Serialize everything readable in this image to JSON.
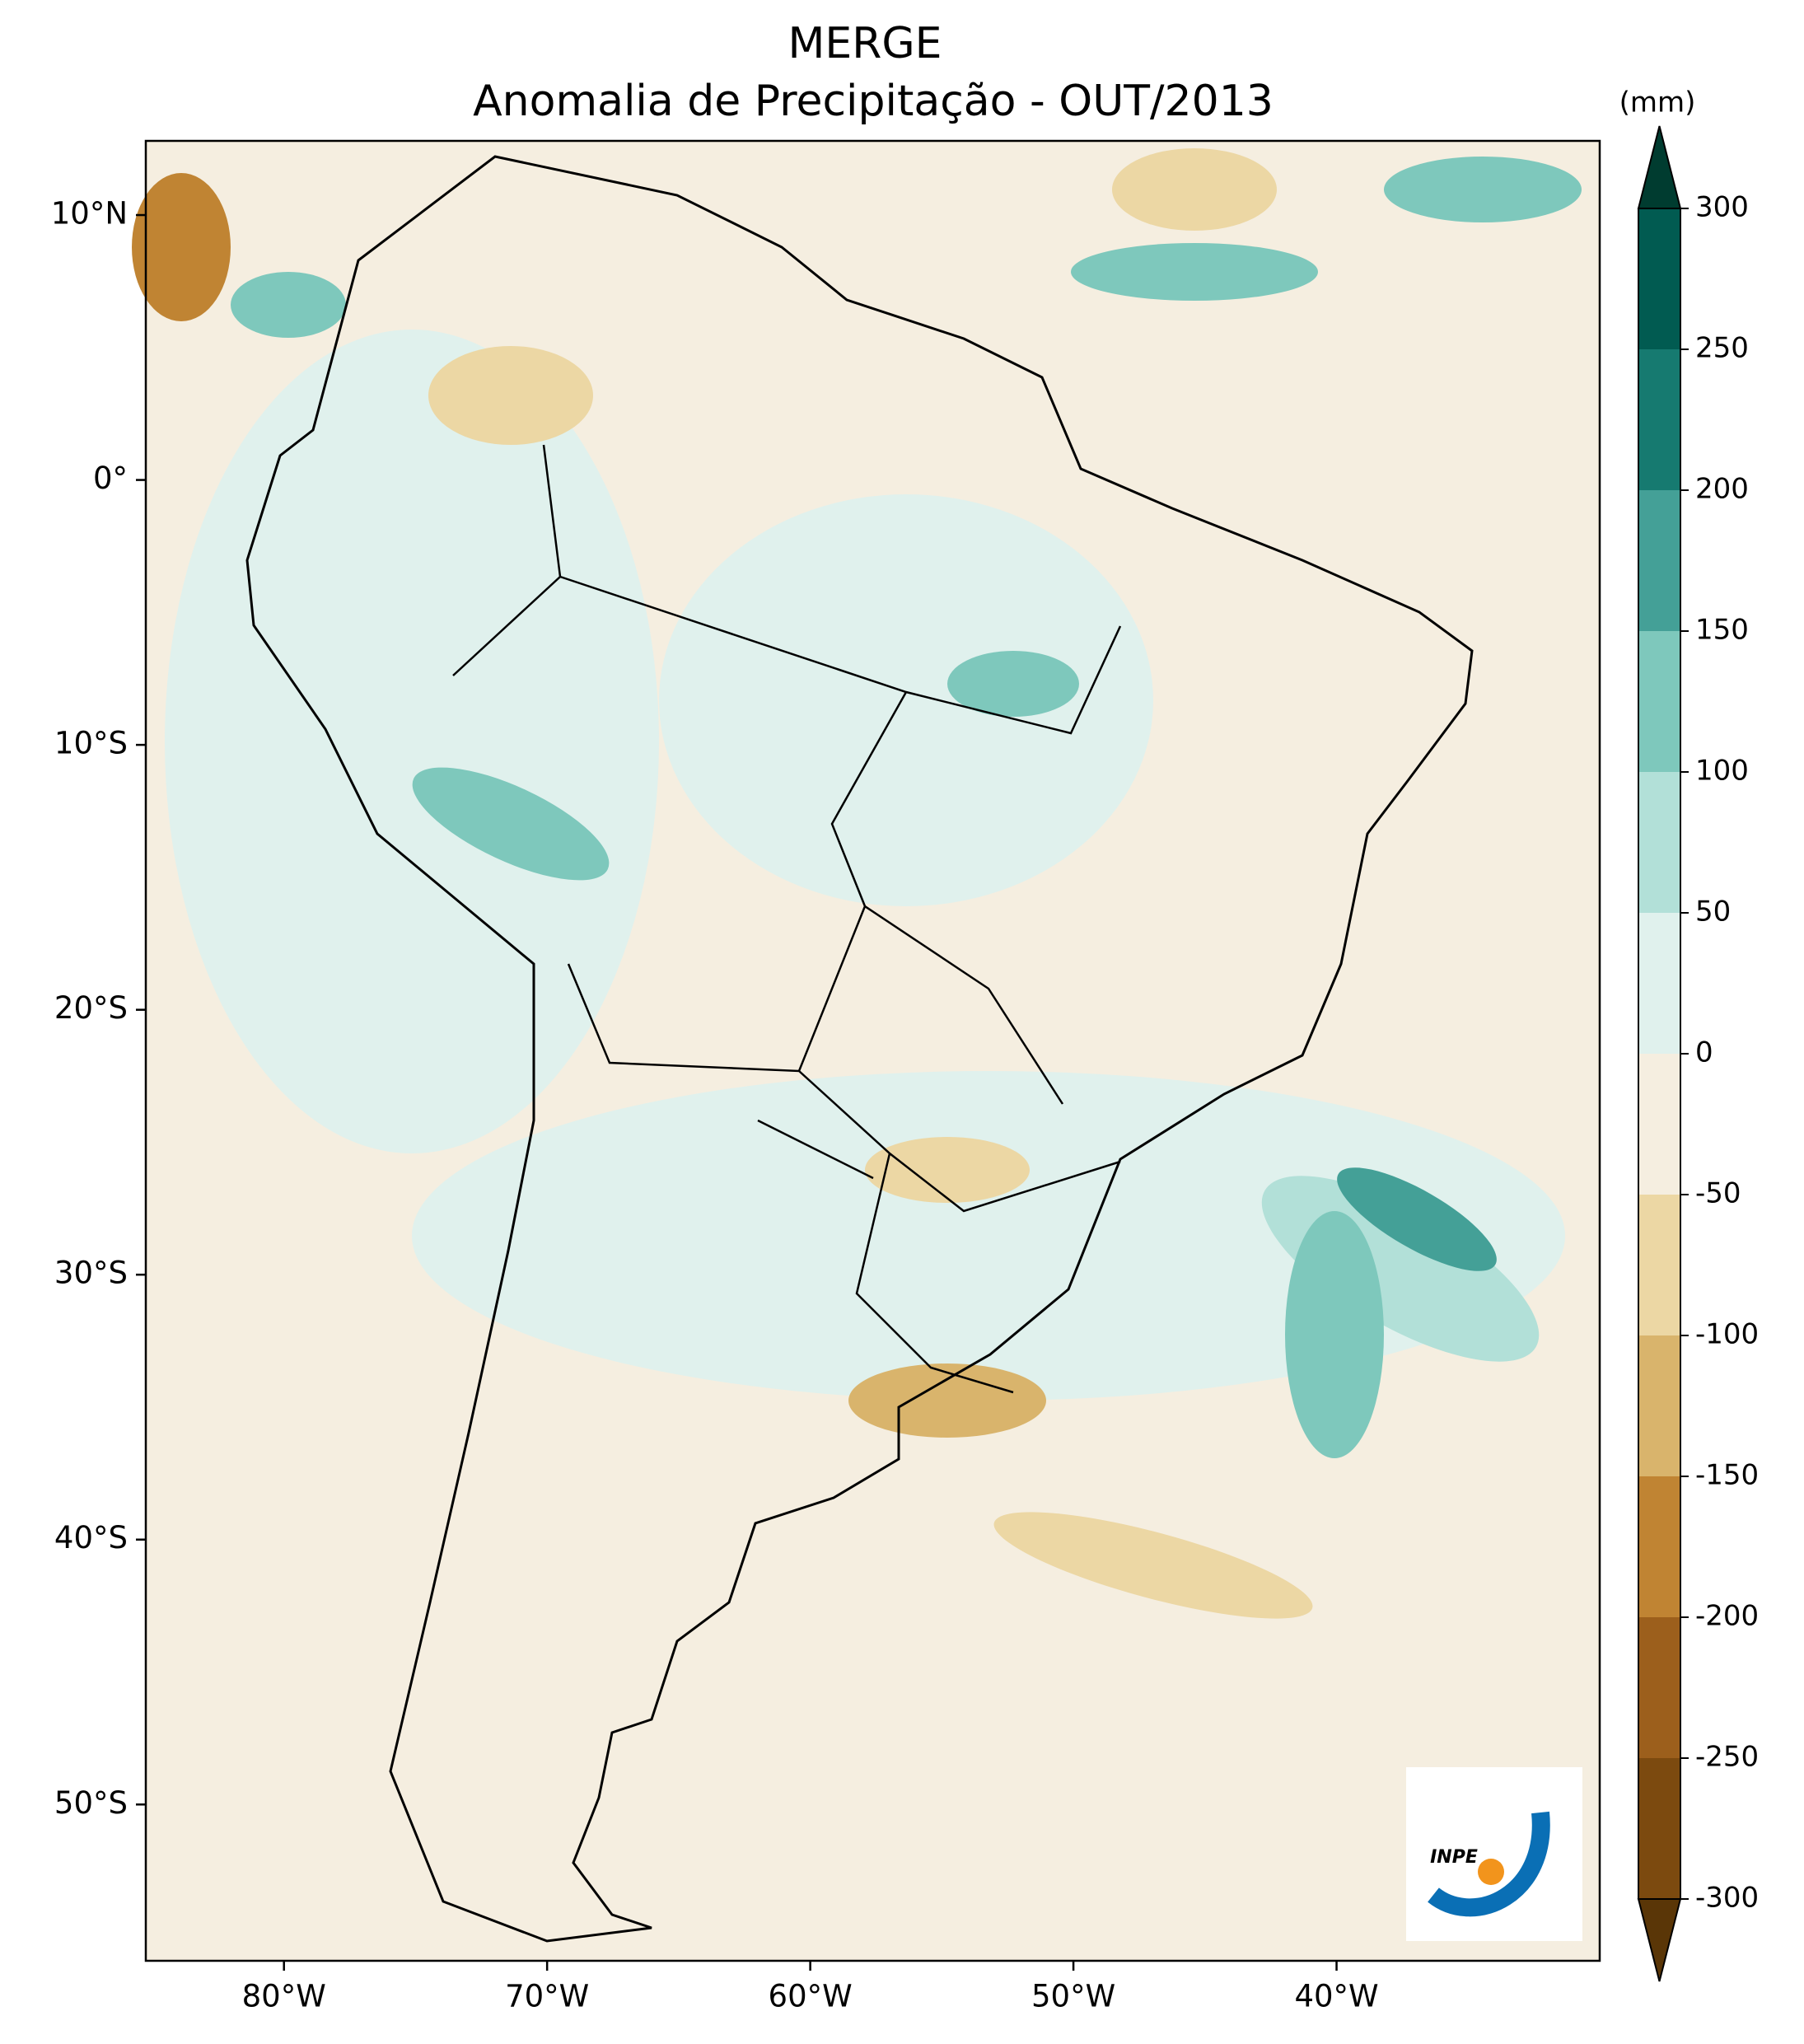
{
  "chart_data": {
    "type": "map",
    "title": "MERGE",
    "subtitle": "Anomalia de Precipitação - OUT/2013",
    "xlim": [
      -85.25,
      -30
    ],
    "ylim": [
      -55.9,
      12.8
    ],
    "xticks": [
      {
        "value": -80,
        "label": "80°W"
      },
      {
        "value": -70,
        "label": "70°W"
      },
      {
        "value": -60,
        "label": "60°W"
      },
      {
        "value": -50,
        "label": "50°W"
      },
      {
        "value": -40,
        "label": "40°W"
      }
    ],
    "yticks": [
      {
        "value": 10,
        "label": "10°N"
      },
      {
        "value": 0,
        "label": "0°"
      },
      {
        "value": -10,
        "label": "10°S"
      },
      {
        "value": -20,
        "label": "20°S"
      },
      {
        "value": -30,
        "label": "30°S"
      },
      {
        "value": -40,
        "label": "40°S"
      },
      {
        "value": -50,
        "label": "50°S"
      }
    ],
    "colorbar": {
      "label": "(mm)",
      "extend": "both",
      "levels": [
        -300,
        -250,
        -200,
        -150,
        -100,
        -50,
        0,
        50,
        100,
        150,
        200,
        250,
        300
      ],
      "colors": [
        "#5a3607",
        "#7c4a0f",
        "#9c5f1c",
        "#c08433",
        "#d9b46c",
        "#ecd7a4",
        "#f5eee0",
        "#e0f1ed",
        "#b2e0d8",
        "#7ec8bc",
        "#44a097",
        "#167a70",
        "#015b51",
        "#003c30"
      ]
    },
    "logo": "INPE"
  }
}
